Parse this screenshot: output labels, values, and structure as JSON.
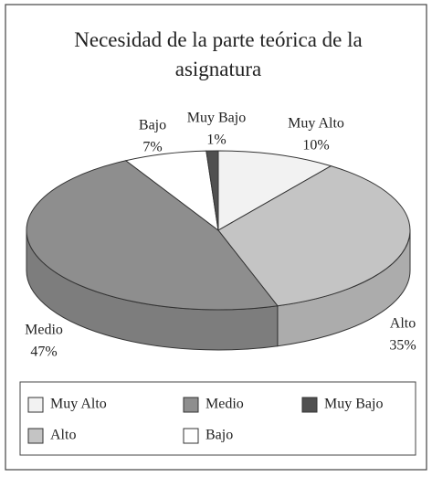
{
  "chart_data": {
    "type": "pie3d",
    "title": "Necesidad de la parte teórica de la asignatura",
    "categories": [
      "Muy Alto",
      "Alto",
      "Medio",
      "Bajo",
      "Muy Bajo"
    ],
    "values": [
      10,
      35,
      47,
      7,
      1
    ],
    "value_labels": [
      "10%",
      "35%",
      "47%",
      "7%",
      "1%"
    ],
    "colors": [
      "#f2f2f2",
      "#c4c4c4",
      "#8e8e8e",
      "#ffffff",
      "#505050"
    ],
    "legend": "bottom"
  }
}
